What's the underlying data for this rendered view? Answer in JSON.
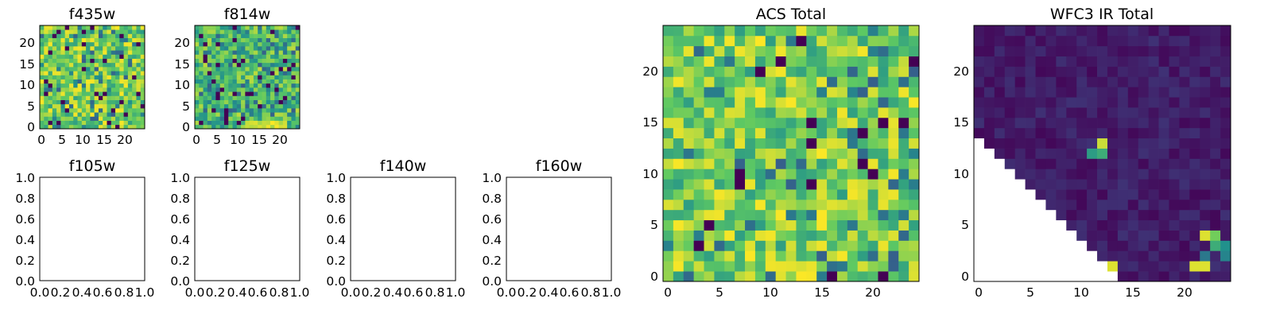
{
  "chart_data": [
    {
      "name": "f435w",
      "type": "heatmap",
      "title": "f435w",
      "x_ticks": [
        "0",
        "5",
        "10",
        "15",
        "20"
      ],
      "y_ticks": [
        "0",
        "5",
        "10",
        "15",
        "20"
      ],
      "xlim": [
        -0.5,
        24.5
      ],
      "ylim": [
        -0.5,
        24.5
      ],
      "grid_size": 25,
      "colormap": "viridis",
      "pattern": "noise_high",
      "seed": 11
    },
    {
      "name": "f814w",
      "type": "heatmap",
      "title": "f814w",
      "x_ticks": [
        "0",
        "5",
        "10",
        "15",
        "20"
      ],
      "y_ticks": [
        "0",
        "5",
        "10",
        "15",
        "20"
      ],
      "xlim": [
        -0.5,
        24.5
      ],
      "ylim": [
        -0.5,
        24.5
      ],
      "grid_size": 25,
      "colormap": "viridis",
      "pattern": "noise_hotspot",
      "seed": 23
    },
    {
      "name": "f105w",
      "type": "empty",
      "title": "f105w",
      "x_ticks": [
        "0.0",
        "0.2",
        "0.4",
        "0.6",
        "0.8",
        "1.0"
      ],
      "y_ticks": [
        "0.0",
        "0.2",
        "0.4",
        "0.6",
        "0.8",
        "1.0"
      ],
      "xlim": [
        0,
        1
      ],
      "ylim": [
        0,
        1
      ]
    },
    {
      "name": "f125w",
      "type": "empty",
      "title": "f125w",
      "x_ticks": [
        "0.0",
        "0.2",
        "0.4",
        "0.6",
        "0.8",
        "1.0"
      ],
      "y_ticks": [
        "0.0",
        "0.2",
        "0.4",
        "0.6",
        "0.8",
        "1.0"
      ],
      "xlim": [
        0,
        1
      ],
      "ylim": [
        0,
        1
      ]
    },
    {
      "name": "f140w",
      "type": "empty",
      "title": "f140w",
      "x_ticks": [
        "0.0",
        "0.2",
        "0.4",
        "0.6",
        "0.8",
        "1.0"
      ],
      "y_ticks": [
        "0.0",
        "0.2",
        "0.4",
        "0.6",
        "0.8",
        "1.0"
      ],
      "xlim": [
        0,
        1
      ],
      "ylim": [
        0,
        1
      ]
    },
    {
      "name": "f160w",
      "type": "empty",
      "title": "f160w",
      "x_ticks": [
        "0.0",
        "0.2",
        "0.4",
        "0.6",
        "0.8",
        "1.0"
      ],
      "y_ticks": [
        "0.0",
        "0.2",
        "0.4",
        "0.6",
        "0.8",
        "1.0"
      ],
      "xlim": [
        0,
        1
      ],
      "ylim": [
        0,
        1
      ]
    },
    {
      "name": "acs-total",
      "type": "heatmap",
      "title": "ACS Total",
      "x_ticks": [
        "0",
        "5",
        "10",
        "15",
        "20"
      ],
      "y_ticks": [
        "0",
        "5",
        "10",
        "15",
        "20"
      ],
      "xlim": [
        -0.5,
        24.5
      ],
      "ylim": [
        -0.5,
        24.5
      ],
      "grid_size": 25,
      "colormap": "viridis",
      "pattern": "noise_mid",
      "seed": 37
    },
    {
      "name": "wfc3-ir-total",
      "type": "heatmap",
      "title": "WFC3 IR Total",
      "x_ticks": [
        "0",
        "5",
        "10",
        "15",
        "20"
      ],
      "y_ticks": [
        "0",
        "5",
        "10",
        "15",
        "20"
      ],
      "xlim": [
        -0.5,
        24.5
      ],
      "ylim": [
        -0.5,
        24.5
      ],
      "grid_size": 25,
      "colormap": "viridis",
      "pattern": "dark_masked_triangle",
      "seed": 53,
      "masked_region": "lower-left triangle (blank)"
    }
  ],
  "colormap_stops": [
    "#440154",
    "#3b528b",
    "#21918c",
    "#5ec962",
    "#fde725"
  ]
}
